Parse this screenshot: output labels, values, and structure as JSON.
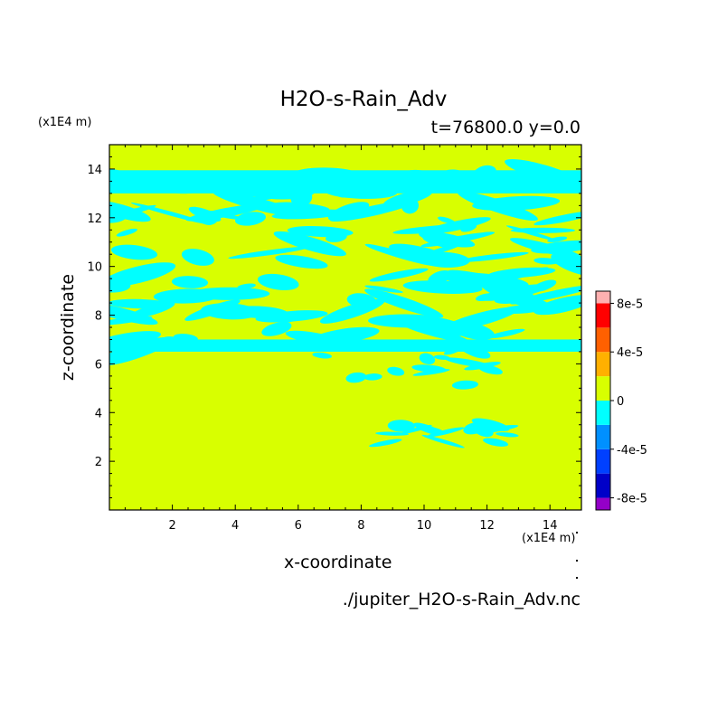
{
  "chart_data": {
    "type": "heatmap",
    "title": "H2O-s-Rain_Adv",
    "subtitle": "t=76800.0 y=0.0",
    "xlabel": "x-coordinate",
    "ylabel": "z-coordinate",
    "x_unit": "(x1E4 m)",
    "y_unit": "(x1E4 m)",
    "xlim": [
      0,
      15
    ],
    "ylim": [
      0,
      15
    ],
    "x_ticks": [
      2,
      4,
      6,
      8,
      10,
      12,
      14
    ],
    "y_ticks": [
      2,
      4,
      6,
      8,
      10,
      12,
      14
    ],
    "x_tick_labels": [
      "2",
      "4",
      "6",
      "8",
      "10",
      "12",
      "14"
    ],
    "y_tick_labels": [
      "2",
      "4",
      "6",
      "8",
      "10",
      "12",
      "14"
    ],
    "colorbar": {
      "levels": [
        -9e-05,
        -8e-05,
        -6e-05,
        -4e-05,
        -2e-05,
        0,
        2e-05,
        4e-05,
        6e-05,
        8e-05,
        9e-05
      ],
      "colors": [
        "#9400c8",
        "#0000c8",
        "#0040ff",
        "#0090ff",
        "#00ffff",
        "#d8ff00",
        "#ffb000",
        "#ff6000",
        "#ff0000",
        "#ffb0b0"
      ],
      "tick_values": [
        -8e-05,
        -4e-05,
        0,
        4e-05,
        8e-05
      ],
      "tick_labels": [
        "-8e-5",
        "-4e-5",
        "0",
        "4e-5",
        "8e-5"
      ]
    },
    "background_color": "#d8ff00",
    "negative_color": "#00ffff",
    "negative_regions": [
      {
        "x": [
          0,
          15
        ],
        "z": [
          12.6,
          14.0
        ],
        "note_level": "-2e-5..0"
      },
      {
        "x": [
          0,
          15
        ],
        "z": [
          11.2,
          12.6
        ]
      },
      {
        "x": [
          0,
          15
        ],
        "z": [
          9.2,
          11.2
        ]
      },
      {
        "x": [
          0,
          15
        ],
        "z": [
          6.5,
          9.2
        ]
      },
      {
        "x": [
          6.6,
          12.2
        ],
        "z": [
          5.0,
          6.6
        ]
      },
      {
        "x": [
          8.3,
          13.6
        ],
        "z": [
          2.7,
          3.6
        ]
      }
    ]
  },
  "footer": {
    "source": "./jupiter_H2O-s-Rain_Adv.nc"
  }
}
